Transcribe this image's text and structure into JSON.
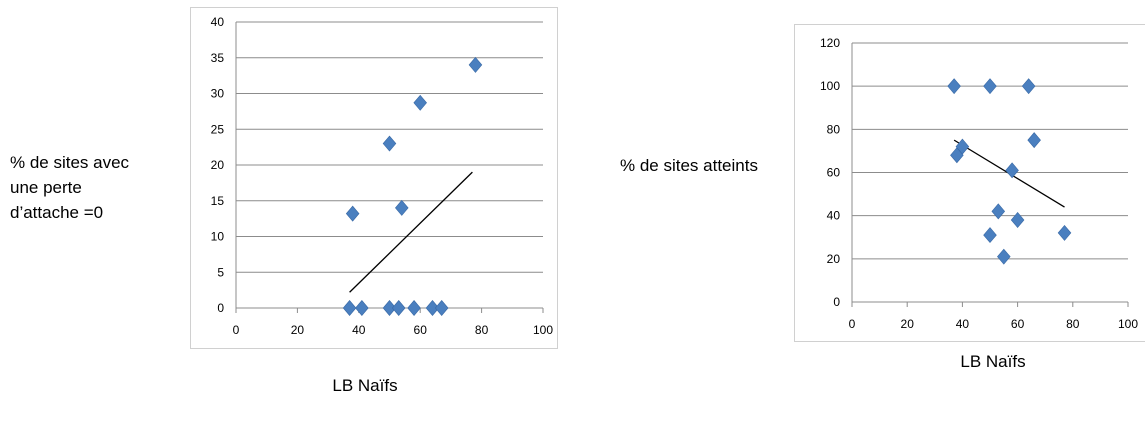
{
  "chart_data": [
    {
      "type": "scatter",
      "ylabel": "% de sites avec une perte d’attache =0",
      "ylabel_lines": [
        "% de sites avec",
        "une perte",
        "d’attache =0"
      ],
      "xlabel": "LB Naïfs",
      "xlim": [
        0,
        100
      ],
      "ylim": [
        0,
        40
      ],
      "xticks": [
        0,
        20,
        40,
        60,
        80,
        100
      ],
      "yticks": [
        0,
        5,
        10,
        15,
        20,
        25,
        30,
        35,
        40
      ],
      "grid": true,
      "marker_color": "#4a7fbf",
      "points": [
        {
          "x": 37,
          "y": 0
        },
        {
          "x": 38,
          "y": 13.2
        },
        {
          "x": 41,
          "y": 0
        },
        {
          "x": 50,
          "y": 23
        },
        {
          "x": 50,
          "y": 0
        },
        {
          "x": 53,
          "y": 0
        },
        {
          "x": 54,
          "y": 14
        },
        {
          "x": 58,
          "y": 0
        },
        {
          "x": 60,
          "y": 28.7
        },
        {
          "x": 64,
          "y": 0
        },
        {
          "x": 67,
          "y": 0
        },
        {
          "x": 78,
          "y": 34
        }
      ],
      "trendline": [
        {
          "x": 37,
          "y": 2.2
        },
        {
          "x": 77,
          "y": 19
        }
      ]
    },
    {
      "type": "scatter",
      "ylabel": "% de sites atteints",
      "ylabel_lines": [
        "% de sites atteints"
      ],
      "xlabel": "LB Naïfs",
      "xlim": [
        0,
        100
      ],
      "ylim": [
        0,
        120
      ],
      "xticks": [
        0,
        20,
        40,
        60,
        80,
        100
      ],
      "yticks": [
        0,
        20,
        40,
        60,
        80,
        100,
        120
      ],
      "grid": true,
      "marker_color": "#4a7fbf",
      "points": [
        {
          "x": 37,
          "y": 100
        },
        {
          "x": 38,
          "y": 68
        },
        {
          "x": 40,
          "y": 72
        },
        {
          "x": 50,
          "y": 100
        },
        {
          "x": 50,
          "y": 31
        },
        {
          "x": 53,
          "y": 42
        },
        {
          "x": 55,
          "y": 21
        },
        {
          "x": 58,
          "y": 61
        },
        {
          "x": 60,
          "y": 38
        },
        {
          "x": 64,
          "y": 100
        },
        {
          "x": 66,
          "y": 75
        },
        {
          "x": 77,
          "y": 32
        }
      ],
      "trendline": [
        {
          "x": 37,
          "y": 75
        },
        {
          "x": 77,
          "y": 44
        }
      ]
    }
  ]
}
